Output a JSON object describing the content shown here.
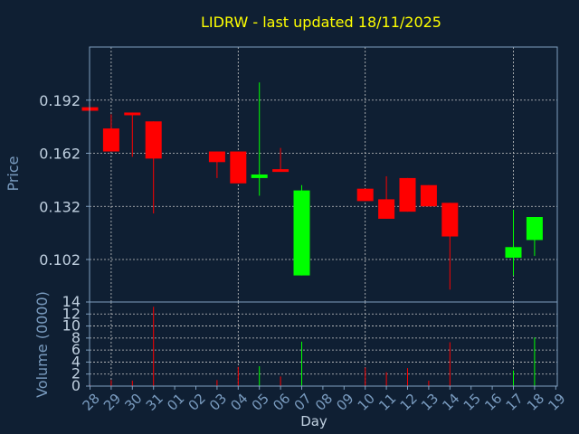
{
  "chart_data": {
    "type": "candlestick",
    "title": "LIDRW - last updated 18/11/2025",
    "xlabel": "Day",
    "ylabel": "Price",
    "volume_label": "Volume (0000)",
    "grid": true,
    "price_ticks": [
      "0.192",
      "0.162",
      "0.132",
      "0.102"
    ],
    "volume_ticks": [
      "0",
      "2",
      "4",
      "6",
      "8",
      "10",
      "12",
      "14"
    ],
    "x_ticks": [
      "28",
      "29",
      "30",
      "31",
      "01",
      "02",
      "03",
      "04",
      "05",
      "06",
      "07",
      "08",
      "09",
      "10",
      "11",
      "12",
      "13",
      "14",
      "15",
      "16",
      "17",
      "18",
      "19"
    ],
    "price_ylim": [
      0.078,
      0.222
    ],
    "volume_ylim": [
      0,
      14
    ],
    "colors": {
      "up": "#00ff00",
      "down": "#ff0000",
      "title": "#ffff00",
      "axis_text": "#7a9cc0",
      "tick_text": "#c0d0e0",
      "frame": "#7f9fbf",
      "grid": "#c8c8c8"
    },
    "candles": [
      {
        "day": "28",
        "open": 0.188,
        "high": 0.188,
        "low": 0.186,
        "close": 0.186,
        "volume": 0.2
      },
      {
        "day": "29",
        "open": 0.176,
        "high": 0.184,
        "low": 0.163,
        "close": 0.163,
        "volume": 1.0
      },
      {
        "day": "30",
        "open": 0.185,
        "high": 0.185,
        "low": 0.16,
        "close": 0.184,
        "volume": 0.9
      },
      {
        "day": "31",
        "open": 0.18,
        "high": 0.18,
        "low": 0.128,
        "close": 0.159,
        "volume": 13.2
      },
      {
        "day": "03",
        "open": 0.163,
        "high": 0.163,
        "low": 0.148,
        "close": 0.157,
        "volume": 1.0
      },
      {
        "day": "04",
        "open": 0.163,
        "high": 0.163,
        "low": 0.145,
        "close": 0.145,
        "volume": 3.2
      },
      {
        "day": "05",
        "open": 0.148,
        "high": 0.202,
        "low": 0.138,
        "close": 0.15,
        "volume": 3.3
      },
      {
        "day": "06",
        "open": 0.153,
        "high": 0.165,
        "low": 0.152,
        "close": 0.152,
        "volume": 1.6
      },
      {
        "day": "07",
        "open": 0.093,
        "high": 0.144,
        "low": 0.093,
        "close": 0.141,
        "volume": 7.4
      },
      {
        "day": "10",
        "open": 0.142,
        "high": 0.142,
        "low": 0.135,
        "close": 0.135,
        "volume": 3.1
      },
      {
        "day": "11",
        "open": 0.136,
        "high": 0.149,
        "low": 0.125,
        "close": 0.125,
        "volume": 2.3
      },
      {
        "day": "12",
        "open": 0.148,
        "high": 0.148,
        "low": 0.129,
        "close": 0.129,
        "volume": 3.0
      },
      {
        "day": "13",
        "open": 0.144,
        "high": 0.144,
        "low": 0.132,
        "close": 0.132,
        "volume": 0.9
      },
      {
        "day": "14",
        "open": 0.134,
        "high": 0.134,
        "low": 0.085,
        "close": 0.115,
        "volume": 7.3
      },
      {
        "day": "17",
        "open": 0.103,
        "high": 0.13,
        "low": 0.093,
        "close": 0.109,
        "volume": 2.6
      },
      {
        "day": "18",
        "open": 0.113,
        "high": 0.126,
        "low": 0.104,
        "close": 0.126,
        "volume": 8.1
      }
    ]
  }
}
